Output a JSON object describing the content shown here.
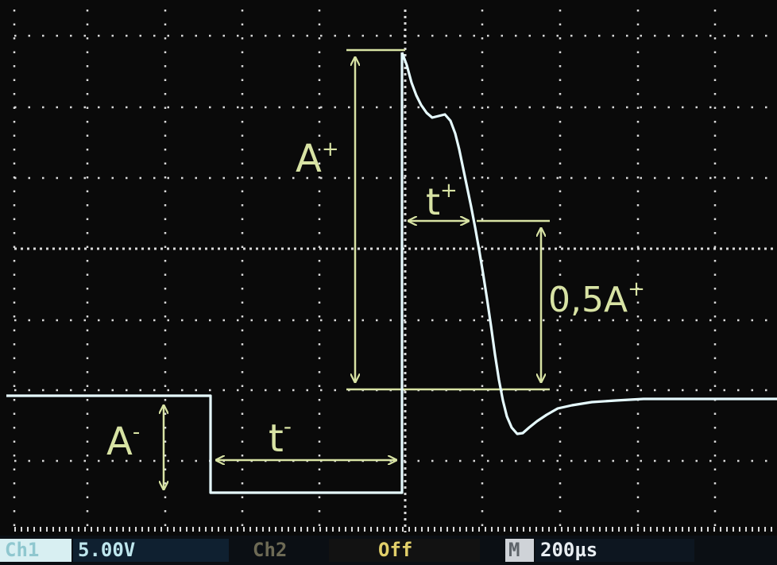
{
  "annotations": {
    "a_plus": "A",
    "a_plus_sup": "+",
    "a_minus": "A",
    "a_minus_sup": "-",
    "t_plus": "t",
    "t_plus_sup": "+",
    "t_minus": "t",
    "t_minus_sup": "-",
    "half_amplitude": "0,5A",
    "half_amplitude_sup": "+"
  },
  "status_bar": {
    "ch1_label": "Ch1",
    "ch1_scale": "5.00V",
    "ch2_label": "Ch2",
    "ch2_state": "Off",
    "timebase_label": "M",
    "timebase_value": "200µs"
  },
  "colors": {
    "trace": "#e6fbff",
    "annotation": "#d8e3a4",
    "grid": "#d9d9d9",
    "screen": "#0a0a0a"
  },
  "icons": {
    "amplitude_arrow": "double-headed-vertical-arrow",
    "time_arrow": "double-headed-horizontal-arrow"
  }
}
